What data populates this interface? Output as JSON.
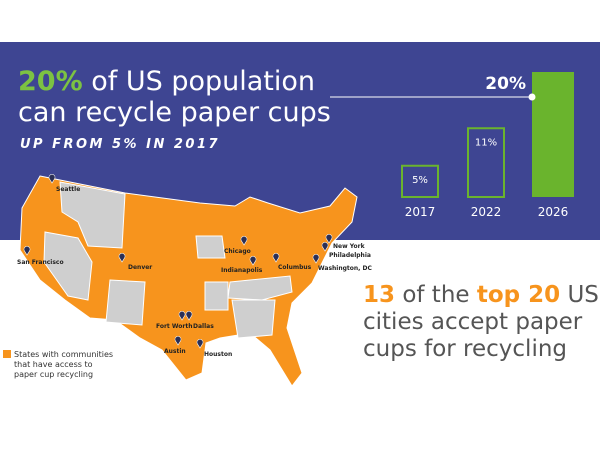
{
  "headline": {
    "lines": [
      [
        {
          "text": "20%",
          "em": true
        },
        {
          "text": " of US population"
        }
      ],
      [
        {
          "text": "can recycle paper cups"
        }
      ]
    ],
    "subtitle": "UP FROM 5% IN 2017"
  },
  "chart_data": {
    "type": "bar",
    "categories": [
      "2017",
      "2022",
      "2026"
    ],
    "values": [
      5,
      11,
      20
    ],
    "value_labels": [
      "5%",
      "11%",
      "20%"
    ],
    "styles": [
      "outline",
      "outline",
      "solid"
    ],
    "color": "#6ab42d",
    "ylim": [
      0,
      20
    ]
  },
  "map": {
    "cities": [
      "Seattle",
      "San Francisco",
      "Denver",
      "Chicago",
      "Indianapolis",
      "Columbus",
      "New York",
      "Philadelphia",
      "Washington, DC",
      "Fort Worth",
      "Dallas",
      "Austin",
      "Houston"
    ],
    "legend": [
      "States with communities",
      "that have access to",
      "paper cup recycling"
    ]
  },
  "callout": {
    "lines": [
      [
        {
          "text": "13",
          "em": true
        },
        {
          "text": " of the "
        },
        {
          "text": "top 20",
          "em": true
        },
        {
          "text": " US"
        }
      ],
      [
        {
          "text": "cities accept paper"
        }
      ],
      [
        {
          "text": "cups for recycling"
        }
      ]
    ]
  }
}
